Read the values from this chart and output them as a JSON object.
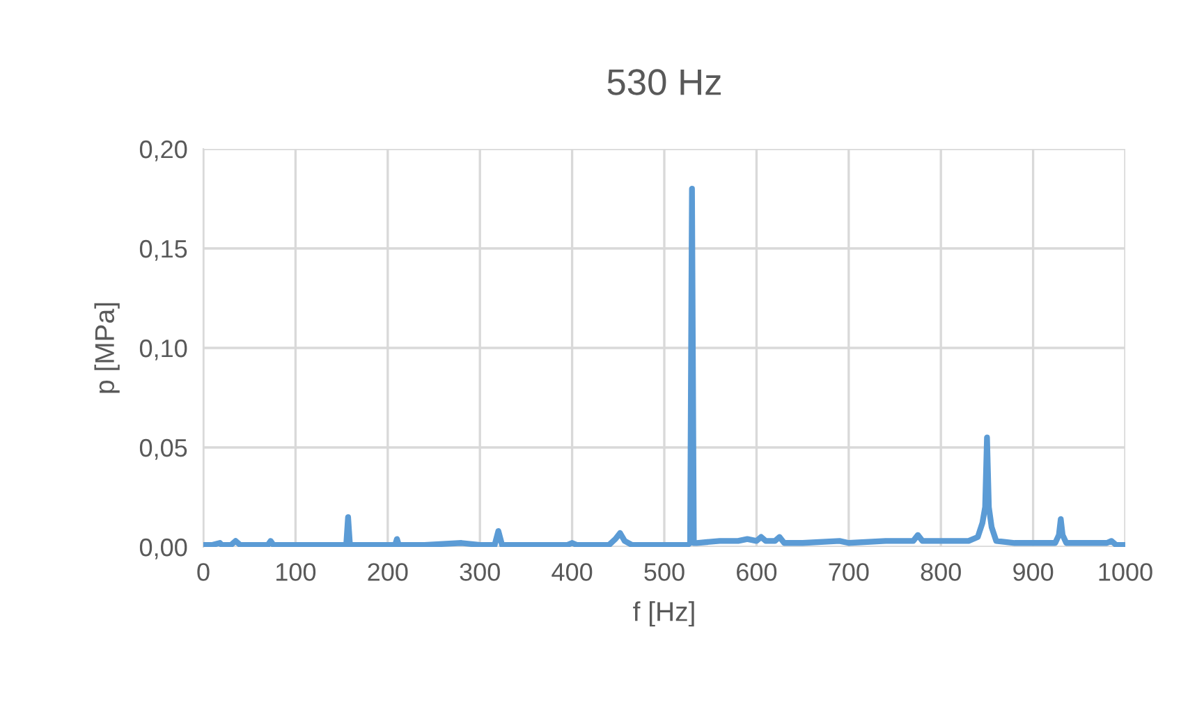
{
  "chart_data": {
    "type": "line",
    "title": "530 Hz",
    "xlabel": "f [Hz]",
    "ylabel": "p [MPa]",
    "series": [
      {
        "color": "#5b9bd5",
        "x": [
          0,
          10,
          18,
          20,
          22,
          30,
          35,
          40,
          55,
          70,
          73,
          76,
          80,
          100,
          130,
          150,
          155,
          157,
          159,
          162,
          200,
          208,
          210,
          212,
          240,
          280,
          300,
          316,
          320,
          324,
          350,
          380,
          395,
          400,
          405,
          440,
          447,
          452,
          457,
          465,
          500,
          525,
          528,
          530,
          532,
          535,
          560,
          580,
          590,
          600,
          605,
          610,
          620,
          625,
          630,
          650,
          690,
          700,
          740,
          770,
          775,
          780,
          800,
          830,
          840,
          845,
          848,
          850,
          852,
          855,
          860,
          880,
          900,
          924,
          928,
          930,
          932,
          936,
          960,
          980,
          985,
          990,
          1000
        ],
        "values": [
          0.001,
          0.001,
          0.002,
          0.001,
          0.001,
          0.001,
          0.003,
          0.001,
          0.001,
          0.001,
          0.003,
          0.001,
          0.001,
          0.001,
          0.001,
          0.001,
          0.001,
          0.015,
          0.001,
          0.001,
          0.001,
          0.001,
          0.004,
          0.001,
          0.001,
          0.002,
          0.001,
          0.001,
          0.008,
          0.001,
          0.001,
          0.001,
          0.001,
          0.002,
          0.001,
          0.001,
          0.004,
          0.007,
          0.003,
          0.001,
          0.001,
          0.001,
          0.002,
          0.18,
          0.002,
          0.002,
          0.003,
          0.003,
          0.004,
          0.003,
          0.005,
          0.003,
          0.003,
          0.005,
          0.002,
          0.002,
          0.003,
          0.002,
          0.003,
          0.003,
          0.006,
          0.003,
          0.003,
          0.003,
          0.005,
          0.012,
          0.02,
          0.055,
          0.02,
          0.01,
          0.003,
          0.002,
          0.002,
          0.002,
          0.006,
          0.014,
          0.006,
          0.002,
          0.002,
          0.002,
          0.003,
          0.001,
          0.001
        ]
      }
    ],
    "xlim": [
      0,
      1000
    ],
    "xticks": [
      0,
      100,
      200,
      300,
      400,
      500,
      600,
      700,
      800,
      900,
      1000
    ],
    "ylim": [
      0,
      0.2
    ],
    "yticks": [
      {
        "value": 0,
        "label": "0,00"
      },
      {
        "value": 0.05,
        "label": "0,05"
      },
      {
        "value": 0.1,
        "label": "0,10"
      },
      {
        "value": 0.15,
        "label": "0,15"
      },
      {
        "value": 0.2,
        "label": "0,20"
      }
    ],
    "grid": true,
    "marker": "none",
    "line_style": "solid"
  }
}
